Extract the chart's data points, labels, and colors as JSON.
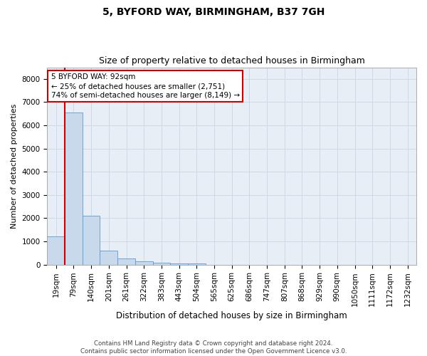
{
  "title": "5, BYFORD WAY, BIRMINGHAM, B37 7GH",
  "subtitle": "Size of property relative to detached houses in Birmingham",
  "xlabel": "Distribution of detached houses by size in Birmingham",
  "ylabel": "Number of detached properties",
  "footer_line1": "Contains HM Land Registry data © Crown copyright and database right 2024.",
  "footer_line2": "Contains public sector information licensed under the Open Government Licence v3.0.",
  "annotation_title": "5 BYFORD WAY: 92sqm",
  "annotation_line1": "← 25% of detached houses are smaller (2,751)",
  "annotation_line2": "74% of semi-detached houses are larger (8,149) →",
  "bar_labels": [
    "19sqm",
    "79sqm",
    "140sqm",
    "201sqm",
    "261sqm",
    "322sqm",
    "383sqm",
    "443sqm",
    "504sqm",
    "565sqm",
    "625sqm",
    "686sqm",
    "747sqm",
    "807sqm",
    "868sqm",
    "929sqm",
    "990sqm",
    "1050sqm",
    "1111sqm",
    "1172sqm",
    "1232sqm"
  ],
  "bar_values": [
    1200,
    6550,
    2100,
    600,
    270,
    130,
    90,
    60,
    55,
    0,
    0,
    0,
    0,
    0,
    0,
    0,
    0,
    0,
    0,
    0,
    0
  ],
  "bar_color": "#c9d9ec",
  "bar_edge_color": "#5b9bd5",
  "vline_color": "#cc0000",
  "vline_x": 0.5,
  "ylim": [
    0,
    8500
  ],
  "yticks": [
    0,
    1000,
    2000,
    3000,
    4000,
    5000,
    6000,
    7000,
    8000
  ],
  "grid_color": "#cdd8e8",
  "background_color": "#e8eef5",
  "title_fontsize": 10,
  "subtitle_fontsize": 9,
  "annotation_box_color": "#ffffff",
  "annotation_box_edge": "#cc0000",
  "ylabel_fontsize": 8,
  "xlabel_fontsize": 8.5,
  "tick_fontsize": 7.5
}
